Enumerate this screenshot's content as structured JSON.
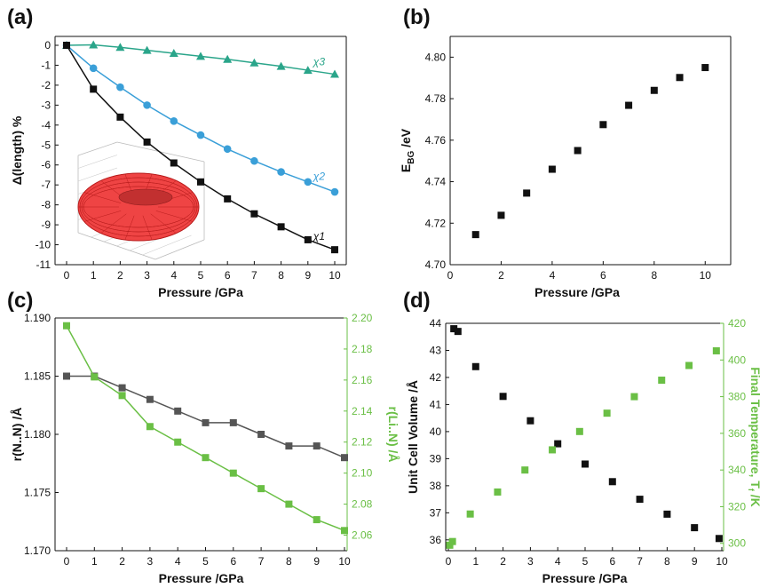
{
  "chart_data": [
    {
      "panel_label": "(a)",
      "type": "line",
      "xlabel": "Pressure /GPa",
      "ylabel": "Δ(length) %",
      "xlim": [
        0,
        10
      ],
      "ylim": [
        -11,
        0
      ],
      "xticks": [
        "0",
        "1",
        "2",
        "3",
        "4",
        "5",
        "6",
        "7",
        "8",
        "9",
        "10"
      ],
      "yticks": [
        "0",
        "-1",
        "-2",
        "-3",
        "-4",
        "-5",
        "-6",
        "-7",
        "-8",
        "-9",
        "-10",
        "-11"
      ],
      "x": [
        0,
        1,
        2,
        3,
        4,
        5,
        6,
        7,
        8,
        9,
        10
      ],
      "series": [
        {
          "name": "χ3",
          "color": "#2aa58a",
          "marker": "triangle",
          "values": [
            0,
            0.02,
            -0.1,
            -0.25,
            -0.4,
            -0.55,
            -0.7,
            -0.88,
            -1.05,
            -1.25,
            -1.45
          ]
        },
        {
          "name": "χ2",
          "color": "#3a9fd8",
          "marker": "circle",
          "values": [
            0,
            -1.15,
            -2.1,
            -3.0,
            -3.8,
            -4.5,
            -5.2,
            -5.8,
            -6.35,
            -6.85,
            -7.35
          ]
        },
        {
          "name": "χ1",
          "color": "#111111",
          "marker": "square",
          "values": [
            0,
            -2.2,
            -3.6,
            -4.85,
            -5.9,
            -6.85,
            -7.7,
            -8.45,
            -9.1,
            -9.75,
            -10.25
          ]
        }
      ],
      "series_labels": [
        {
          "text": "χ3",
          "color": "#2aa58a",
          "x": 9.0,
          "y": -1.0
        },
        {
          "text": "χ2",
          "color": "#3a9fd8",
          "x": 9.0,
          "y": -6.75
        },
        {
          "text": "χ1",
          "color": "#111111",
          "x": 9.0,
          "y": -9.75
        }
      ],
      "inset": "red-torus-wireframe"
    },
    {
      "panel_label": "(b)",
      "type": "scatter",
      "xlabel": "Pressure /GPa",
      "ylabel_main": "E",
      "ylabel_sub": "BG",
      "ylabel_rest": " /eV",
      "xlim": [
        0,
        11
      ],
      "ylim": [
        4.7,
        4.81
      ],
      "xticks": [
        "0",
        "2",
        "4",
        "6",
        "8",
        "10"
      ],
      "yticks": [
        "4.70",
        "4.72",
        "4.74",
        "4.76",
        "4.78",
        "4.80"
      ],
      "x": [
        1,
        2,
        3,
        4,
        5,
        6,
        7,
        8,
        9,
        10
      ],
      "values": [
        4.7145,
        4.7238,
        4.7345,
        4.746,
        4.755,
        4.7675,
        4.7768,
        4.784,
        4.7902,
        4.795
      ],
      "color": "#111111"
    },
    {
      "panel_label": "(c)",
      "type": "line",
      "xlabel": "Pressure /GPa",
      "ylabel_left": "r(N..N) /Å",
      "ylabel_right": "r(Li..N) /Å",
      "xlim": [
        0,
        10
      ],
      "ylim_left": [
        1.17,
        1.19
      ],
      "ylim_right": [
        2.05,
        2.2
      ],
      "xticks": [
        "0",
        "1",
        "2",
        "3",
        "4",
        "5",
        "6",
        "7",
        "8",
        "9",
        "10"
      ],
      "yticks_left": [
        "1.170",
        "1.175",
        "1.180",
        "1.185",
        "1.190"
      ],
      "yticks_right": [
        "2.06",
        "2.08",
        "2.10",
        "2.12",
        "2.14",
        "2.16",
        "2.18",
        "2.20"
      ],
      "x": [
        0,
        1,
        2,
        3,
        4,
        5,
        6,
        7,
        8,
        9,
        10
      ],
      "series": [
        {
          "name": "r(N..N)",
          "axis": "left",
          "color": "#555555",
          "values": [
            1.185,
            1.185,
            1.184,
            1.183,
            1.182,
            1.181,
            1.181,
            1.18,
            1.179,
            1.179,
            1.178
          ]
        },
        {
          "name": "r(Li..N)",
          "axis": "right",
          "color": "#6abf45",
          "values": [
            2.195,
            2.162,
            2.15,
            2.13,
            2.12,
            2.11,
            2.1,
            2.09,
            2.08,
            2.07,
            2.063
          ]
        }
      ]
    },
    {
      "panel_label": "(d)",
      "type": "scatter",
      "xlabel": "Pressure /GPa",
      "ylabel_left": "Unit Cell Volume /Å",
      "ylabel_right_main": "Final Temperature, T",
      "ylabel_right_sub": "f",
      "ylabel_right_rest": " /K",
      "xlim": [
        0,
        10
      ],
      "ylim_left": [
        35.6,
        44.0
      ],
      "ylim_right": [
        296,
        420
      ],
      "xticks": [
        "0",
        "1",
        "2",
        "3",
        "4",
        "5",
        "6",
        "7",
        "8",
        "9",
        "10"
      ],
      "yticks_left": [
        "36",
        "37",
        "38",
        "39",
        "40",
        "41",
        "42",
        "43",
        "44"
      ],
      "yticks_right": [
        "300",
        "320",
        "340",
        "360",
        "380",
        "400",
        "420"
      ],
      "series": [
        {
          "name": "Unit Cell Volume",
          "axis": "left",
          "color": "#111111",
          "x": [
            0.2,
            0.35,
            1.0,
            2.0,
            3.0,
            4.0,
            5.0,
            6.0,
            7.0,
            8.0,
            9.0,
            9.9
          ],
          "values": [
            43.8,
            43.7,
            42.4,
            41.3,
            40.4,
            39.55,
            38.8,
            38.15,
            37.5,
            36.95,
            36.45,
            36.05
          ]
        },
        {
          "name": "Final Temperature",
          "axis": "right",
          "color": "#6abf45",
          "x": [
            0.05,
            0.15,
            0.8,
            1.8,
            2.8,
            3.8,
            4.8,
            5.8,
            6.8,
            7.8,
            8.8,
            9.8
          ],
          "values": [
            299,
            301,
            316,
            328,
            340,
            351,
            361,
            371,
            380,
            389,
            397,
            405
          ]
        }
      ]
    }
  ]
}
